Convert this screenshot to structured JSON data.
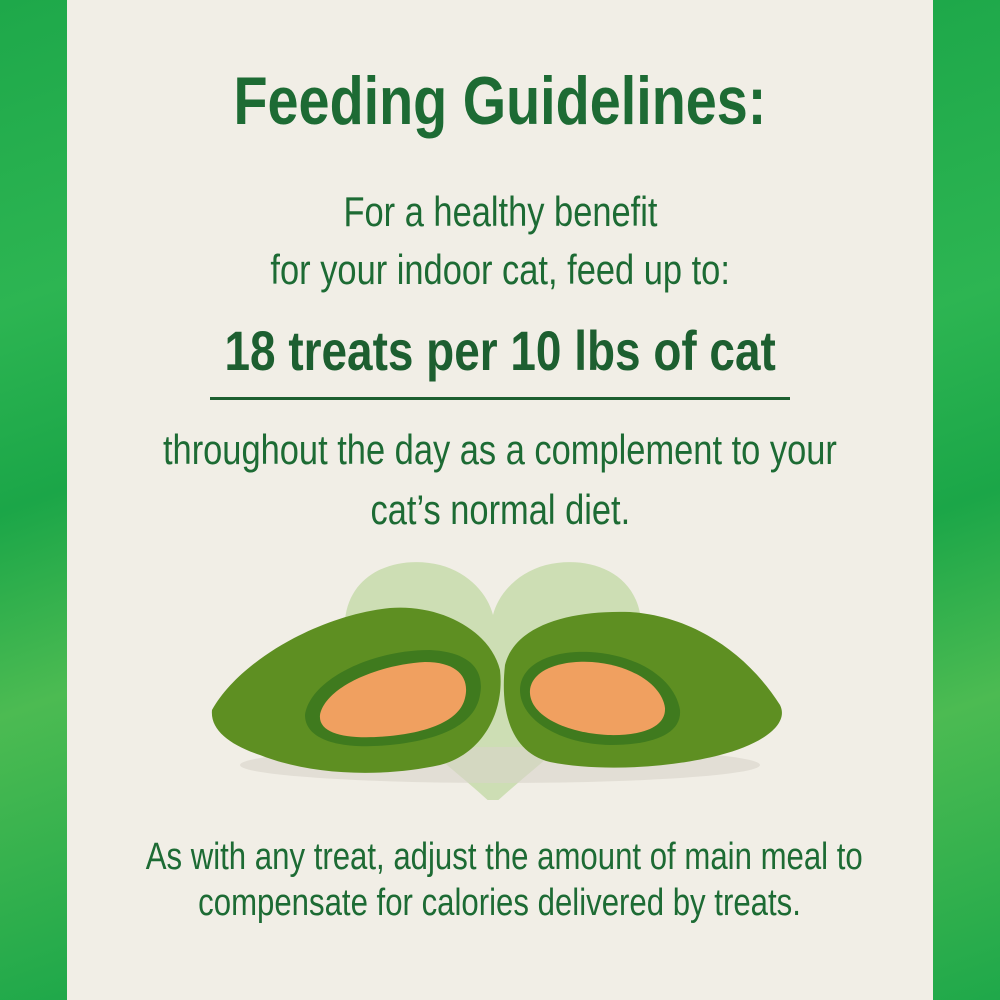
{
  "title": "Feeding Guidelines:",
  "intro_lines": [
    "For a healthy benefit",
    "for your indoor cat, feed up to:"
  ],
  "dosage": "18 treats per 10 lbs of cat",
  "detail_lines": [
    "throughout the day as a complement to your",
    "cat’s normal diet."
  ],
  "footer_lines": [
    "As with any treat, adjust the amount of main meal to",
    "compensate for calories delivered by treats."
  ],
  "colors": {
    "text": "#1d6b34",
    "border": "#1ea84a",
    "background": "#f1eee6",
    "heart": "#c9dcae"
  },
  "icons": [
    "heart-icon"
  ]
}
